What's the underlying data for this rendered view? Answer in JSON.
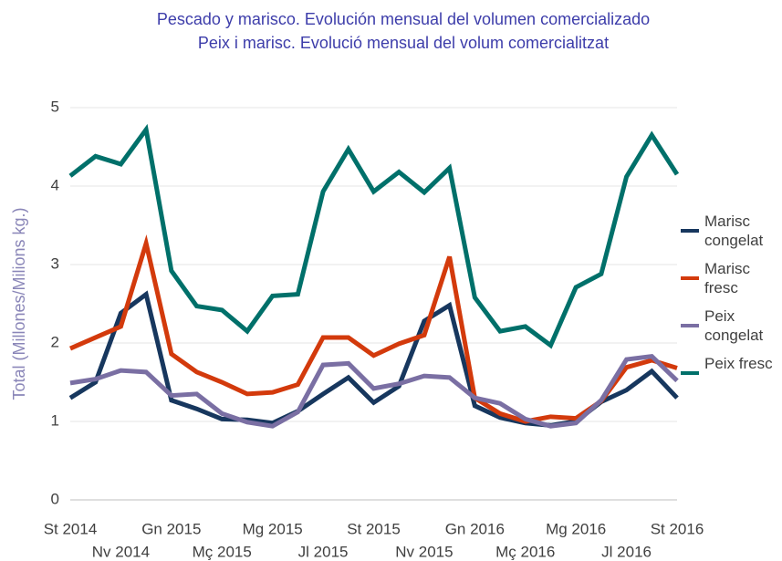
{
  "chart_data": {
    "type": "line",
    "title": "Pescado y marisco. Evolución mensual del volumen comercializado",
    "subtitle": "Peix i marisc. Evolució mensual del volum comercialitzat",
    "y_label": "Total (Millones/Milions kg.)",
    "categories": [
      "St 2014",
      null,
      "Nv 2014",
      null,
      "Gn 2015",
      null,
      "Mç 2015",
      null,
      "Mg 2015",
      null,
      "Jl 2015",
      null,
      "St 2015",
      null,
      "Nv 2015",
      null,
      "Gn 2016",
      null,
      "Mç 2016",
      null,
      "Mg 2016",
      null,
      "Jl 2016",
      null,
      "St 2016"
    ],
    "series": [
      {
        "name": "Marisc congelat",
        "color": "#17375e",
        "values": [
          1.3,
          1.5,
          2.38,
          2.62,
          1.27,
          1.16,
          1.03,
          1.02,
          0.98,
          1.13,
          1.35,
          1.56,
          1.24,
          1.45,
          2.28,
          2.48,
          1.2,
          1.05,
          0.98,
          0.95,
          1.0,
          1.25,
          1.4,
          1.64,
          1.3
        ]
      },
      {
        "name": "Marisc fresc",
        "color": "#d33a0c",
        "values": [
          1.93,
          2.07,
          2.21,
          3.27,
          1.86,
          1.63,
          1.5,
          1.35,
          1.37,
          1.47,
          2.07,
          2.07,
          1.84,
          1.99,
          2.1,
          3.1,
          1.3,
          1.1,
          1.0,
          1.06,
          1.04,
          1.26,
          1.69,
          1.78,
          1.68
        ]
      },
      {
        "name": "Peix congelat",
        "color": "#7a6fa3",
        "values": [
          1.49,
          1.54,
          1.65,
          1.63,
          1.33,
          1.35,
          1.1,
          0.99,
          0.94,
          1.12,
          1.72,
          1.74,
          1.42,
          1.48,
          1.58,
          1.56,
          1.3,
          1.23,
          1.03,
          0.94,
          0.98,
          1.27,
          1.79,
          1.83,
          1.52
        ]
      },
      {
        "name": "Peix fresc",
        "color": "#00706a",
        "values": [
          4.13,
          4.38,
          4.28,
          4.72,
          2.92,
          2.47,
          2.42,
          2.15,
          2.6,
          2.62,
          3.93,
          4.47,
          3.93,
          4.18,
          3.92,
          4.23,
          2.58,
          2.15,
          2.21,
          1.97,
          2.71,
          2.88,
          4.12,
          4.65,
          4.15
        ]
      }
    ],
    "ylim": [
      0,
      5
    ],
    "yticks": [
      0,
      1,
      2,
      3,
      4,
      5
    ],
    "grid": true,
    "legend": "right"
  }
}
